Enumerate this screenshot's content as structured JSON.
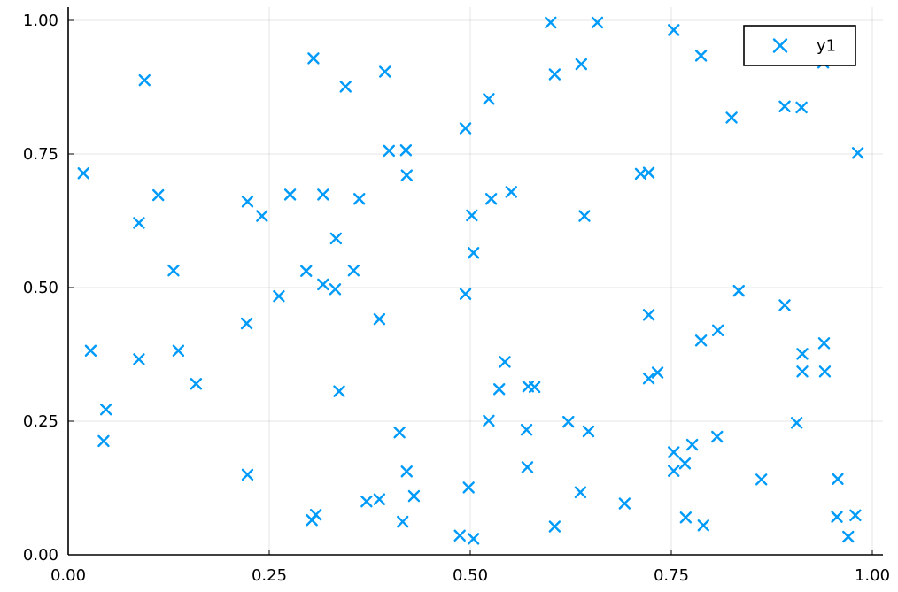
{
  "chart_data": {
    "type": "scatter",
    "title": "",
    "xlabel": "",
    "ylabel": "",
    "xlim": [
      0.0,
      1.0
    ],
    "ylim": [
      0.0,
      1.0
    ],
    "grid": true,
    "legend_position": "top-right",
    "xticks": [
      "0.00",
      "0.25",
      "0.50",
      "0.75",
      "1.00"
    ],
    "yticks": [
      "0.00",
      "0.25",
      "0.50",
      "0.75",
      "1.00"
    ],
    "series": [
      {
        "name": "y1",
        "color": "#009af9",
        "marker": "x",
        "points": [
          [
            0.019,
            0.714
          ],
          [
            0.028,
            0.382
          ],
          [
            0.044,
            0.213
          ],
          [
            0.047,
            0.272
          ],
          [
            0.088,
            0.366
          ],
          [
            0.088,
            0.621
          ],
          [
            0.095,
            0.888
          ],
          [
            0.112,
            0.673
          ],
          [
            0.131,
            0.532
          ],
          [
            0.137,
            0.382
          ],
          [
            0.159,
            0.32
          ],
          [
            0.222,
            0.433
          ],
          [
            0.223,
            0.661
          ],
          [
            0.223,
            0.15
          ],
          [
            0.241,
            0.634
          ],
          [
            0.262,
            0.484
          ],
          [
            0.276,
            0.674
          ],
          [
            0.296,
            0.531
          ],
          [
            0.303,
            0.065
          ],
          [
            0.305,
            0.929
          ],
          [
            0.308,
            0.075
          ],
          [
            0.317,
            0.674
          ],
          [
            0.317,
            0.506
          ],
          [
            0.332,
            0.497
          ],
          [
            0.333,
            0.592
          ],
          [
            0.337,
            0.306
          ],
          [
            0.345,
            0.876
          ],
          [
            0.355,
            0.532
          ],
          [
            0.362,
            0.666
          ],
          [
            0.371,
            0.1
          ],
          [
            0.387,
            0.104
          ],
          [
            0.387,
            0.441
          ],
          [
            0.394,
            0.904
          ],
          [
            0.399,
            0.756
          ],
          [
            0.412,
            0.229
          ],
          [
            0.416,
            0.062
          ],
          [
            0.42,
            0.757
          ],
          [
            0.421,
            0.71
          ],
          [
            0.421,
            0.156
          ],
          [
            0.43,
            0.11
          ],
          [
            0.487,
            0.036
          ],
          [
            0.494,
            0.798
          ],
          [
            0.494,
            0.488
          ],
          [
            0.498,
            0.126
          ],
          [
            0.502,
            0.635
          ],
          [
            0.504,
            0.565
          ],
          [
            0.504,
            0.03
          ],
          [
            0.523,
            0.853
          ],
          [
            0.523,
            0.251
          ],
          [
            0.526,
            0.666
          ],
          [
            0.536,
            0.31
          ],
          [
            0.543,
            0.361
          ],
          [
            0.551,
            0.679
          ],
          [
            0.57,
            0.234
          ],
          [
            0.571,
            0.164
          ],
          [
            0.572,
            0.315
          ],
          [
            0.58,
            0.314
          ],
          [
            0.6,
            0.996
          ],
          [
            0.605,
            0.899
          ],
          [
            0.605,
            0.053
          ],
          [
            0.622,
            0.249
          ],
          [
            0.637,
            0.117
          ],
          [
            0.638,
            0.918
          ],
          [
            0.642,
            0.634
          ],
          [
            0.647,
            0.231
          ],
          [
            0.658,
            0.996
          ],
          [
            0.692,
            0.096
          ],
          [
            0.712,
            0.713
          ],
          [
            0.722,
            0.715
          ],
          [
            0.722,
            0.449
          ],
          [
            0.722,
            0.33
          ],
          [
            0.733,
            0.341
          ],
          [
            0.753,
            0.982
          ],
          [
            0.753,
            0.192
          ],
          [
            0.753,
            0.157
          ],
          [
            0.767,
            0.171
          ],
          [
            0.768,
            0.07
          ],
          [
            0.776,
            0.206
          ],
          [
            0.787,
            0.934
          ],
          [
            0.787,
            0.401
          ],
          [
            0.79,
            0.055
          ],
          [
            0.807,
            0.221
          ],
          [
            0.808,
            0.42
          ],
          [
            0.825,
            0.818
          ],
          [
            0.834,
            0.494
          ],
          [
            0.862,
            0.141
          ],
          [
            0.891,
            0.839
          ],
          [
            0.891,
            0.467
          ],
          [
            0.906,
            0.247
          ],
          [
            0.912,
            0.837
          ],
          [
            0.913,
            0.376
          ],
          [
            0.913,
            0.343
          ],
          [
            0.939,
            0.921
          ],
          [
            0.94,
            0.396
          ],
          [
            0.941,
            0.343
          ],
          [
            0.956,
            0.071
          ],
          [
            0.957,
            0.142
          ],
          [
            0.97,
            0.034
          ],
          [
            0.979,
            0.074
          ],
          [
            0.982,
            0.752
          ]
        ]
      }
    ]
  }
}
